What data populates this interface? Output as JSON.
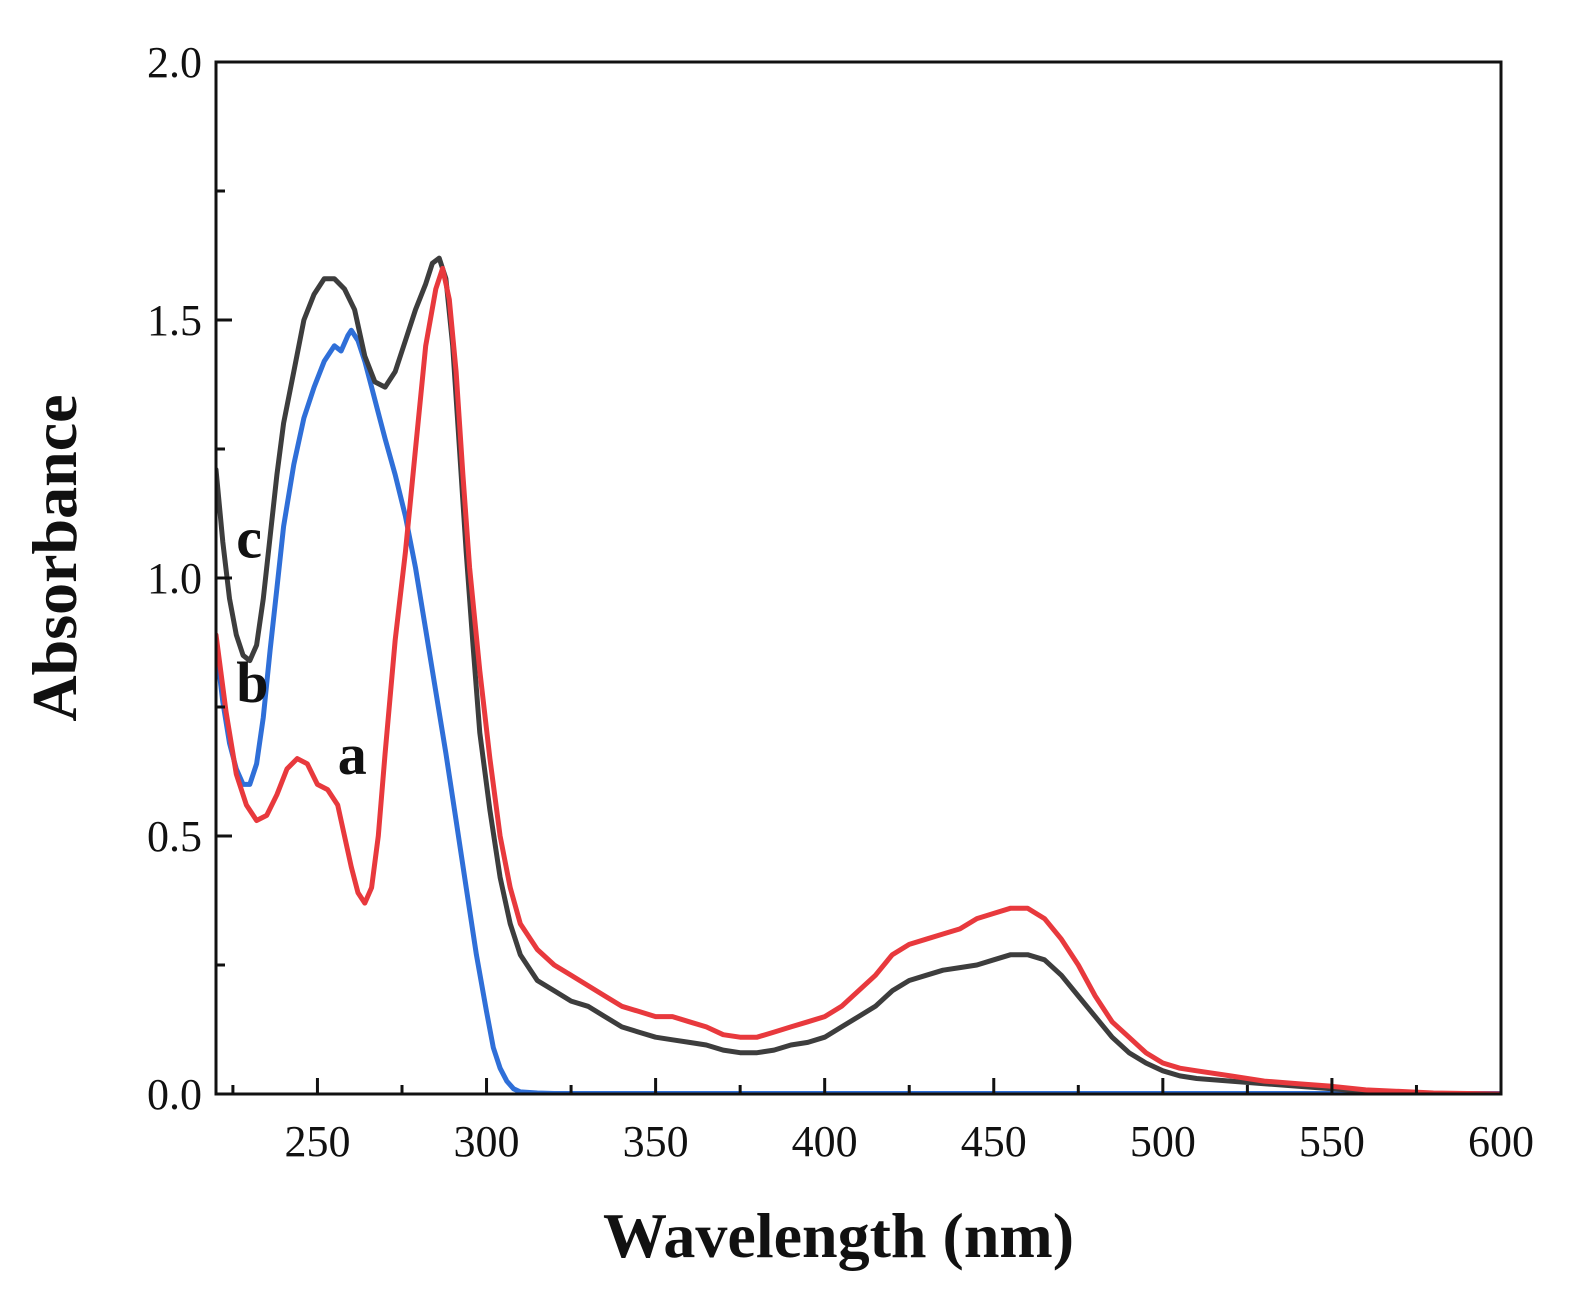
{
  "chart_data": {
    "type": "line",
    "xlabel": "Wavelength (nm)",
    "ylabel": "Absorbance",
    "xlim": [
      220,
      600
    ],
    "ylim": [
      0.0,
      2.0
    ],
    "x_ticks": [
      "250",
      "300",
      "350",
      "400",
      "450",
      "500",
      "550",
      "600"
    ],
    "y_ticks": [
      "0.0",
      "0.5",
      "1.0",
      "1.5",
      "2.0"
    ],
    "grid": false,
    "legend": "none",
    "series": [
      {
        "name": "a",
        "color": "#e8393d",
        "points": [
          [
            220,
            0.89
          ],
          [
            223,
            0.74
          ],
          [
            226,
            0.62
          ],
          [
            229,
            0.56
          ],
          [
            232,
            0.53
          ],
          [
            235,
            0.54
          ],
          [
            238,
            0.58
          ],
          [
            241,
            0.63
          ],
          [
            244,
            0.65
          ],
          [
            247,
            0.64
          ],
          [
            250,
            0.6
          ],
          [
            253,
            0.59
          ],
          [
            256,
            0.56
          ],
          [
            258,
            0.5
          ],
          [
            260,
            0.44
          ],
          [
            262,
            0.39
          ],
          [
            264,
            0.37
          ],
          [
            266,
            0.4
          ],
          [
            268,
            0.5
          ],
          [
            270,
            0.66
          ],
          [
            273,
            0.88
          ],
          [
            276,
            1.05
          ],
          [
            279,
            1.25
          ],
          [
            282,
            1.45
          ],
          [
            285,
            1.56
          ],
          [
            287,
            1.6
          ],
          [
            289,
            1.54
          ],
          [
            291,
            1.4
          ],
          [
            293,
            1.2
          ],
          [
            295,
            1.02
          ],
          [
            298,
            0.82
          ],
          [
            301,
            0.65
          ],
          [
            304,
            0.5
          ],
          [
            307,
            0.4
          ],
          [
            310,
            0.33
          ],
          [
            315,
            0.28
          ],
          [
            320,
            0.25
          ],
          [
            325,
            0.23
          ],
          [
            330,
            0.21
          ],
          [
            335,
            0.19
          ],
          [
            340,
            0.17
          ],
          [
            345,
            0.16
          ],
          [
            350,
            0.15
          ],
          [
            355,
            0.15
          ],
          [
            360,
            0.14
          ],
          [
            365,
            0.13
          ],
          [
            370,
            0.115
          ],
          [
            375,
            0.11
          ],
          [
            380,
            0.11
          ],
          [
            385,
            0.12
          ],
          [
            390,
            0.13
          ],
          [
            395,
            0.14
          ],
          [
            400,
            0.15
          ],
          [
            405,
            0.17
          ],
          [
            410,
            0.2
          ],
          [
            415,
            0.23
          ],
          [
            420,
            0.27
          ],
          [
            425,
            0.29
          ],
          [
            430,
            0.3
          ],
          [
            435,
            0.31
          ],
          [
            440,
            0.32
          ],
          [
            445,
            0.34
          ],
          [
            450,
            0.35
          ],
          [
            455,
            0.36
          ],
          [
            460,
            0.36
          ],
          [
            465,
            0.34
          ],
          [
            470,
            0.3
          ],
          [
            475,
            0.25
          ],
          [
            480,
            0.19
          ],
          [
            485,
            0.14
          ],
          [
            490,
            0.11
          ],
          [
            495,
            0.08
          ],
          [
            500,
            0.06
          ],
          [
            505,
            0.05
          ],
          [
            510,
            0.045
          ],
          [
            520,
            0.035
          ],
          [
            530,
            0.025
          ],
          [
            540,
            0.02
          ],
          [
            550,
            0.015
          ],
          [
            560,
            0.008
          ],
          [
            570,
            0.005
          ],
          [
            580,
            0.002
          ],
          [
            590,
            0.001
          ],
          [
            600,
            0.0
          ]
        ]
      },
      {
        "name": "b",
        "color": "#2f6fd8",
        "points": [
          [
            220,
            0.87
          ],
          [
            222,
            0.76
          ],
          [
            224,
            0.68
          ],
          [
            226,
            0.63
          ],
          [
            228,
            0.6
          ],
          [
            230,
            0.6
          ],
          [
            232,
            0.64
          ],
          [
            234,
            0.73
          ],
          [
            236,
            0.86
          ],
          [
            238,
            0.98
          ],
          [
            240,
            1.1
          ],
          [
            243,
            1.22
          ],
          [
            246,
            1.31
          ],
          [
            249,
            1.37
          ],
          [
            252,
            1.42
          ],
          [
            255,
            1.45
          ],
          [
            257,
            1.44
          ],
          [
            259,
            1.47
          ],
          [
            260,
            1.48
          ],
          [
            262,
            1.46
          ],
          [
            264,
            1.42
          ],
          [
            266,
            1.37
          ],
          [
            268,
            1.32
          ],
          [
            270,
            1.27
          ],
          [
            273,
            1.2
          ],
          [
            276,
            1.12
          ],
          [
            279,
            1.02
          ],
          [
            282,
            0.9
          ],
          [
            285,
            0.78
          ],
          [
            288,
            0.66
          ],
          [
            291,
            0.53
          ],
          [
            294,
            0.4
          ],
          [
            297,
            0.27
          ],
          [
            300,
            0.16
          ],
          [
            302,
            0.09
          ],
          [
            304,
            0.05
          ],
          [
            306,
            0.025
          ],
          [
            308,
            0.01
          ],
          [
            310,
            0.004
          ],
          [
            315,
            0.002
          ],
          [
            320,
            0.001
          ],
          [
            350,
            0.001
          ],
          [
            400,
            0.001
          ],
          [
            450,
            0.001
          ],
          [
            500,
            0.001
          ],
          [
            550,
            0.001
          ],
          [
            600,
            0.001
          ]
        ]
      },
      {
        "name": "c",
        "color": "#3d3d3d",
        "points": [
          [
            220,
            1.21
          ],
          [
            222,
            1.07
          ],
          [
            224,
            0.96
          ],
          [
            226,
            0.89
          ],
          [
            228,
            0.85
          ],
          [
            230,
            0.84
          ],
          [
            232,
            0.87
          ],
          [
            234,
            0.96
          ],
          [
            236,
            1.08
          ],
          [
            238,
            1.2
          ],
          [
            240,
            1.3
          ],
          [
            243,
            1.4
          ],
          [
            246,
            1.5
          ],
          [
            249,
            1.55
          ],
          [
            252,
            1.58
          ],
          [
            255,
            1.58
          ],
          [
            258,
            1.56
          ],
          [
            261,
            1.52
          ],
          [
            264,
            1.43
          ],
          [
            267,
            1.38
          ],
          [
            270,
            1.37
          ],
          [
            273,
            1.4
          ],
          [
            276,
            1.46
          ],
          [
            279,
            1.52
          ],
          [
            282,
            1.57
          ],
          [
            284,
            1.61
          ],
          [
            286,
            1.62
          ],
          [
            288,
            1.58
          ],
          [
            290,
            1.45
          ],
          [
            292,
            1.25
          ],
          [
            294,
            1.05
          ],
          [
            296,
            0.87
          ],
          [
            298,
            0.7
          ],
          [
            301,
            0.55
          ],
          [
            304,
            0.42
          ],
          [
            307,
            0.33
          ],
          [
            310,
            0.27
          ],
          [
            315,
            0.22
          ],
          [
            320,
            0.2
          ],
          [
            325,
            0.18
          ],
          [
            330,
            0.17
          ],
          [
            335,
            0.15
          ],
          [
            340,
            0.13
          ],
          [
            345,
            0.12
          ],
          [
            350,
            0.11
          ],
          [
            355,
            0.105
          ],
          [
            360,
            0.1
          ],
          [
            365,
            0.095
          ],
          [
            370,
            0.085
          ],
          [
            375,
            0.08
          ],
          [
            380,
            0.08
          ],
          [
            385,
            0.085
          ],
          [
            390,
            0.095
          ],
          [
            395,
            0.1
          ],
          [
            400,
            0.11
          ],
          [
            405,
            0.13
          ],
          [
            410,
            0.15
          ],
          [
            415,
            0.17
          ],
          [
            420,
            0.2
          ],
          [
            425,
            0.22
          ],
          [
            430,
            0.23
          ],
          [
            435,
            0.24
          ],
          [
            440,
            0.245
          ],
          [
            445,
            0.25
          ],
          [
            450,
            0.26
          ],
          [
            455,
            0.27
          ],
          [
            460,
            0.27
          ],
          [
            465,
            0.26
          ],
          [
            470,
            0.23
          ],
          [
            475,
            0.19
          ],
          [
            480,
            0.15
          ],
          [
            485,
            0.11
          ],
          [
            490,
            0.08
          ],
          [
            495,
            0.06
          ],
          [
            500,
            0.045
          ],
          [
            505,
            0.035
          ],
          [
            510,
            0.03
          ],
          [
            520,
            0.025
          ],
          [
            530,
            0.02
          ],
          [
            540,
            0.015
          ],
          [
            550,
            0.01
          ],
          [
            560,
            0.005
          ],
          [
            570,
            0.003
          ],
          [
            580,
            0.001
          ],
          [
            590,
            0.0
          ],
          [
            600,
            0.0
          ]
        ]
      }
    ],
    "annotations": [
      {
        "text": "c",
        "x": 226,
        "y": 1.04
      },
      {
        "text": "b",
        "x": 226,
        "y": 0.76
      },
      {
        "text": "a",
        "x": 256,
        "y": 0.62
      }
    ]
  }
}
